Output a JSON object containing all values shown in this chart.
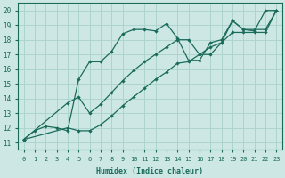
{
  "xlabel": "Humidex (Indice chaleur)",
  "xlim": [
    -0.5,
    23.5
  ],
  "ylim": [
    10.5,
    20.5
  ],
  "xticks": [
    0,
    1,
    2,
    3,
    4,
    5,
    6,
    7,
    8,
    9,
    10,
    11,
    12,
    13,
    14,
    15,
    16,
    17,
    18,
    19,
    20,
    21,
    22,
    23
  ],
  "yticks": [
    11,
    12,
    13,
    14,
    15,
    16,
    17,
    18,
    19,
    20
  ],
  "bg_color": "#cde8e4",
  "grid_color": "#aed4ce",
  "line_color": "#1a6b5a",
  "line1_x": [
    0,
    1,
    2,
    3,
    4,
    5,
    6,
    7,
    8,
    9,
    10,
    11,
    12,
    13,
    14,
    15,
    16,
    17,
    18,
    19,
    20,
    21,
    22,
    23
  ],
  "line1_y": [
    11.2,
    11.8,
    12.1,
    12.0,
    11.8,
    15.3,
    16.5,
    16.5,
    17.2,
    18.4,
    18.7,
    18.7,
    18.6,
    19.1,
    18.1,
    16.6,
    16.6,
    17.8,
    18.0,
    19.3,
    18.7,
    18.6,
    20.0,
    20.0
  ],
  "line2_x": [
    0,
    4,
    5,
    6,
    7,
    8,
    9,
    10,
    11,
    12,
    13,
    14,
    15,
    16,
    17,
    18,
    19,
    20,
    21,
    22,
    23
  ],
  "line2_y": [
    11.2,
    12.0,
    11.8,
    11.8,
    12.2,
    12.8,
    13.5,
    14.1,
    14.7,
    15.3,
    15.8,
    16.4,
    16.5,
    17.0,
    17.5,
    17.8,
    18.5,
    18.5,
    18.5,
    18.5,
    20.0
  ],
  "line3_x": [
    0,
    4,
    5,
    6,
    7,
    8,
    9,
    10,
    11,
    12,
    13,
    14,
    15,
    16,
    17,
    18,
    19,
    20,
    21,
    22,
    23
  ],
  "line3_y": [
    11.2,
    13.7,
    14.1,
    13.0,
    13.6,
    14.4,
    15.2,
    15.9,
    16.5,
    17.0,
    17.5,
    18.0,
    18.0,
    17.0,
    17.0,
    17.8,
    19.3,
    18.7,
    18.7,
    18.7,
    20.0
  ]
}
